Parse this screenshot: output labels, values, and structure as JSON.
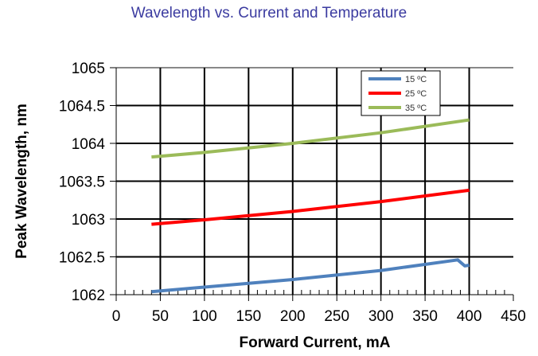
{
  "chart_data": {
    "type": "line",
    "title": "Wavelength vs. Current and Temperature",
    "xlabel": "Forward Current, mA",
    "ylabel": "Peak Wavelength, nm",
    "xlim": [
      0,
      450
    ],
    "ylim": [
      1062,
      1065
    ],
    "xticks": [
      "0",
      "50",
      "100",
      "150",
      "200",
      "250",
      "300",
      "350",
      "400",
      "450"
    ],
    "yticks": [
      "1062",
      "1062.5",
      "1063",
      "1063.5",
      "1064",
      "1064.5",
      "1065"
    ],
    "grid": true,
    "legend_position": "top-right",
    "series": [
      {
        "name": "15 ºC",
        "color": "#4f81bd",
        "x": [
          40,
          100,
          200,
          300,
          387,
          395,
          400
        ],
        "y": [
          1062.04,
          1062.1,
          1062.2,
          1062.32,
          1062.46,
          1062.38,
          1062.39
        ]
      },
      {
        "name": "25 ºC",
        "color": "#ff0000",
        "x": [
          40,
          100,
          200,
          300,
          400
        ],
        "y": [
          1062.93,
          1062.99,
          1063.1,
          1063.23,
          1063.38
        ]
      },
      {
        "name": "35 ºC",
        "color": "#9bbb59",
        "x": [
          40,
          100,
          200,
          300,
          400
        ],
        "y": [
          1063.82,
          1063.88,
          1064.0,
          1064.14,
          1064.31
        ]
      }
    ]
  }
}
